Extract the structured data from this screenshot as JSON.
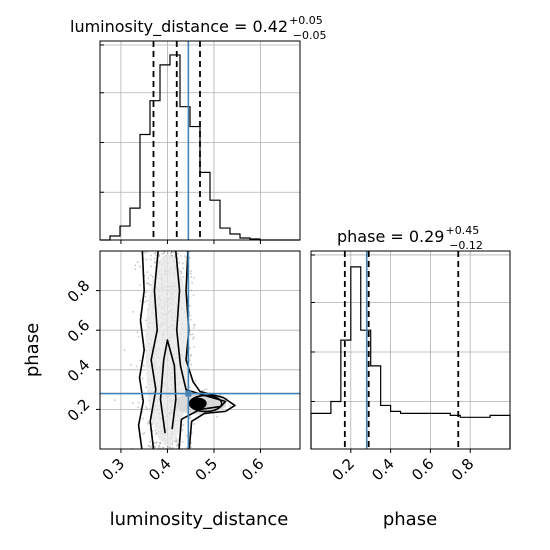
{
  "chart_data": [
    {
      "type": "histogram",
      "panel": "luminosity_distance marginal",
      "title": {
        "name": "luminosity_distance",
        "value": "0.42",
        "upper": "+0.05",
        "lower": "−0.05"
      },
      "xlim": [
        0.255,
        0.685
      ],
      "ylim": [
        0,
        1
      ],
      "xticks": [
        0.3,
        0.4,
        0.5,
        0.6
      ],
      "bins": [
        0.255,
        0.2765,
        0.298,
        0.3195,
        0.341,
        0.3625,
        0.384,
        0.4055,
        0.427,
        0.4485,
        0.47,
        0.4915,
        0.513,
        0.5345,
        0.556,
        0.5775,
        0.599,
        0.6205,
        0.642,
        0.6635,
        0.685
      ],
      "values": [
        0.0,
        0.02,
        0.07,
        0.16,
        0.53,
        0.7,
        0.88,
        0.93,
        0.67,
        0.57,
        0.34,
        0.2,
        0.06,
        0.03,
        0.01,
        0.005,
        0.0,
        0.0,
        0.0,
        0.0
      ],
      "quantiles": [
        0.37,
        0.42,
        0.47
      ],
      "truth": 0.445,
      "grid": true
    },
    {
      "type": "histogram",
      "panel": "phase marginal",
      "title": {
        "name": "phase",
        "value": "0.29",
        "upper": "+0.45",
        "lower": "−0.12"
      },
      "xlim": [
        0.0,
        1.0
      ],
      "ylim": [
        0,
        1
      ],
      "xticks": [
        0.2,
        0.4,
        0.6,
        0.8
      ],
      "xlabel": "phase",
      "bins": [
        0.0,
        0.05,
        0.1,
        0.15,
        0.2,
        0.25,
        0.3,
        0.35,
        0.4,
        0.45,
        0.5,
        0.55,
        0.6,
        0.65,
        0.7,
        0.75,
        0.8,
        0.85,
        0.9,
        0.95,
        1.0
      ],
      "values": [
        0.18,
        0.18,
        0.24,
        0.55,
        0.92,
        0.6,
        0.42,
        0.22,
        0.19,
        0.18,
        0.18,
        0.18,
        0.18,
        0.18,
        0.17,
        0.16,
        0.16,
        0.16,
        0.17,
        0.17
      ],
      "quantiles": [
        0.17,
        0.29,
        0.74
      ],
      "truth": 0.28,
      "grid": true
    },
    {
      "type": "contour-scatter",
      "panel": "luminosity_distance vs phase",
      "xlabel": "luminosity_distance",
      "ylabel": "phase",
      "xlim": [
        0.255,
        0.685
      ],
      "ylim": [
        0.0,
        1.0
      ],
      "xticks": [
        0.3,
        0.4,
        0.5,
        0.6
      ],
      "yticks": [
        0.2,
        0.4,
        0.6,
        0.8
      ],
      "truth": {
        "x": 0.445,
        "y": 0.28
      },
      "peak": {
        "x": 0.465,
        "y": 0.23
      },
      "contours": [
        [
          [
            0.345,
            0.0
          ],
          [
            0.338,
            0.12
          ],
          [
            0.348,
            0.24
          ],
          [
            0.34,
            0.36
          ],
          [
            0.35,
            0.5
          ],
          [
            0.342,
            0.65
          ],
          [
            0.35,
            0.8
          ],
          [
            0.346,
            1.0
          ]
        ],
        [
          [
            0.447,
            0.0
          ],
          [
            0.452,
            0.14
          ],
          [
            0.48,
            0.18
          ],
          [
            0.525,
            0.19
          ],
          [
            0.545,
            0.22
          ],
          [
            0.52,
            0.26
          ],
          [
            0.47,
            0.29
          ],
          [
            0.455,
            0.34
          ],
          [
            0.44,
            0.45
          ],
          [
            0.446,
            0.6
          ],
          [
            0.44,
            0.8
          ],
          [
            0.444,
            1.0
          ]
        ],
        [
          [
            0.37,
            0.0
          ],
          [
            0.363,
            0.14
          ],
          [
            0.375,
            0.3
          ],
          [
            0.365,
            0.45
          ],
          [
            0.378,
            0.6
          ],
          [
            0.372,
            0.8
          ],
          [
            0.38,
            1.0
          ]
        ],
        [
          [
            0.425,
            0.0
          ],
          [
            0.43,
            0.15
          ],
          [
            0.47,
            0.2
          ],
          [
            0.515,
            0.215
          ],
          [
            0.525,
            0.24
          ],
          [
            0.48,
            0.27
          ],
          [
            0.44,
            0.3
          ],
          [
            0.428,
            0.42
          ],
          [
            0.42,
            0.6
          ],
          [
            0.426,
            0.8
          ],
          [
            0.418,
            1.0
          ]
        ],
        [
          [
            0.395,
            0.08
          ],
          [
            0.385,
            0.25
          ],
          [
            0.392,
            0.45
          ],
          [
            0.4,
            0.55
          ],
          [
            0.415,
            0.42
          ],
          [
            0.418,
            0.25
          ],
          [
            0.41,
            0.1
          ]
        ]
      ],
      "grid": true
    }
  ],
  "colors": {
    "truth": "#4682b4",
    "line": "#000000",
    "grid": "#b0b0b0",
    "scatter": "#9a9a9a"
  }
}
